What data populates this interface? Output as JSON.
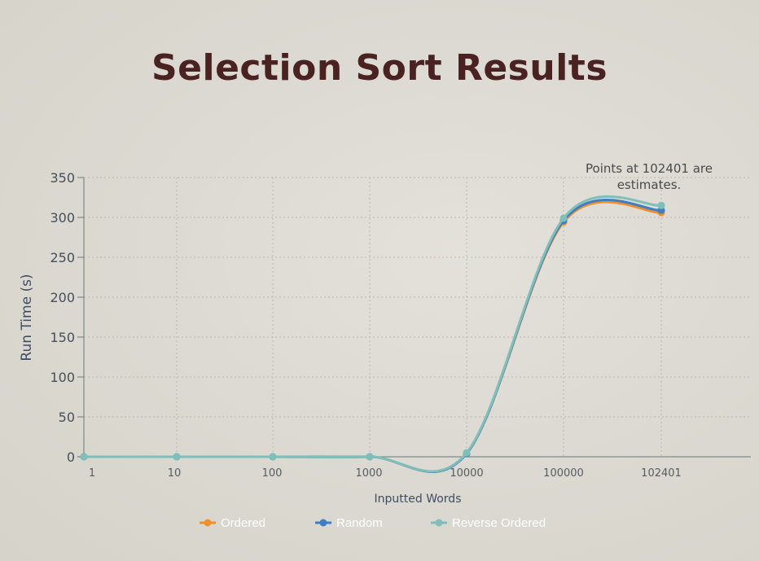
{
  "slide": {
    "title": "Selection Sort Results"
  },
  "chart_data": {
    "type": "line",
    "title": "",
    "xlabel": "Inputted Words",
    "ylabel": "Run Time (s)",
    "categories": [
      "1",
      "10",
      "100",
      "1000",
      "10000",
      "100000",
      "102401"
    ],
    "ylim": [
      0,
      350
    ],
    "yticks": [
      0,
      50,
      100,
      150,
      200,
      250,
      300,
      350
    ],
    "grid": true,
    "legend_position": "bottom",
    "annotation": [
      "Points at 102401 are",
      "estimates."
    ],
    "series": [
      {
        "name": "Ordered",
        "color": "#f28e2b",
        "values": [
          0,
          0,
          0,
          0,
          4,
          294,
          306
        ]
      },
      {
        "name": "Random",
        "color": "#3b7fc4",
        "values": [
          0,
          0,
          0,
          0,
          4,
          296,
          309
        ]
      },
      {
        "name": "Reverse Ordered",
        "color": "#7fbfba",
        "values": [
          0,
          0,
          0,
          0,
          5,
          299,
          315
        ]
      }
    ]
  }
}
